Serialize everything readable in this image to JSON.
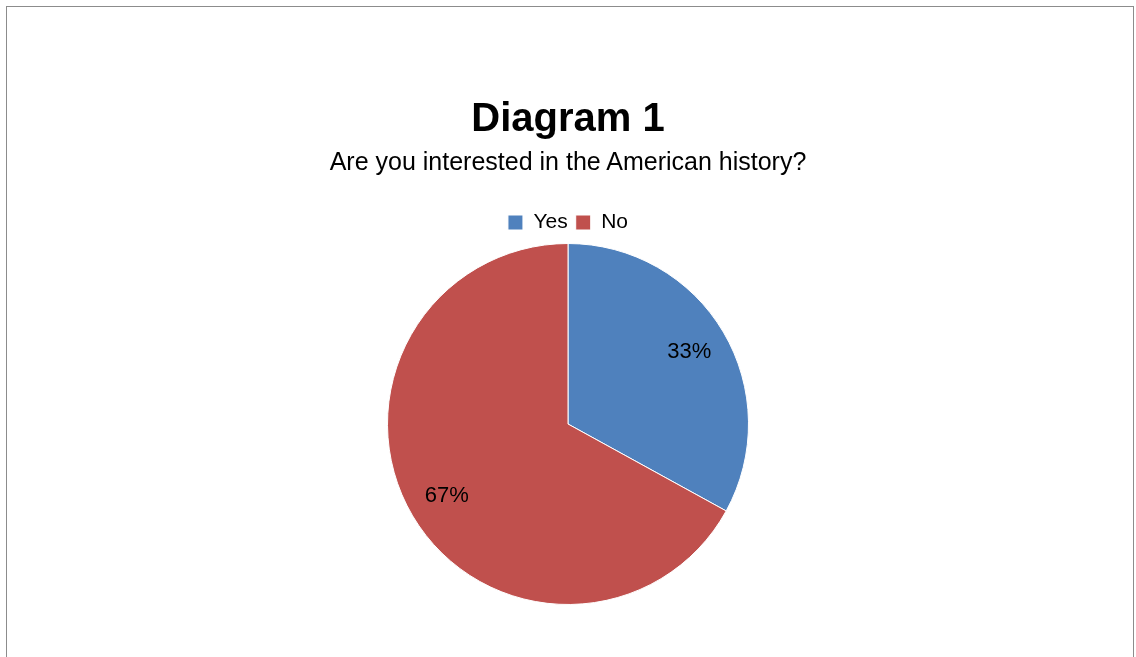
{
  "chart_data": {
    "type": "pie",
    "title": "Diagram 1",
    "subtitle": "Are you interested in the American history?",
    "categories": [
      "Yes",
      "No"
    ],
    "values": [
      33,
      67
    ],
    "colors": [
      "#4f81bd",
      "#c0504d"
    ],
    "value_labels": [
      "33%",
      "67%"
    ],
    "legend": "top"
  }
}
